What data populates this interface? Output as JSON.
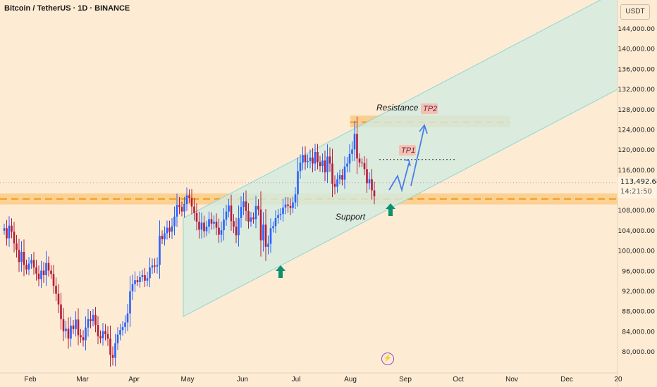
{
  "header": {
    "title": "Bitcoin / TetherUS · 1D · BINANCE"
  },
  "currency": "USDT",
  "price_axis": {
    "ticks": [
      {
        "v": 144000,
        "label": "144,000.00"
      },
      {
        "v": 140000,
        "label": "140,000.00"
      },
      {
        "v": 136000,
        "label": "136,000.00"
      },
      {
        "v": 132000,
        "label": "132,000.00"
      },
      {
        "v": 128000,
        "label": "128,000.00"
      },
      {
        "v": 124000,
        "label": "124,000.00"
      },
      {
        "v": 120000,
        "label": "120,000.00"
      },
      {
        "v": 116000,
        "label": "116,000.00"
      },
      {
        "v": 108000,
        "label": "108,000.00"
      },
      {
        "v": 104000,
        "label": "104,000.00"
      },
      {
        "v": 100000,
        "label": "100,000.00"
      },
      {
        "v": 96000,
        "label": "96,000.00"
      },
      {
        "v": 92000,
        "label": "92,000.00"
      },
      {
        "v": 88000,
        "label": "88,000.00"
      },
      {
        "v": 84000,
        "label": "84,000.00"
      },
      {
        "v": 80000,
        "label": "80,000.00"
      }
    ]
  },
  "current_price": {
    "value": "113,492.68",
    "countdown": "14:21:50"
  },
  "time_axis": {
    "labels": [
      "Feb",
      "Mar",
      "Apr",
      "May",
      "Jun",
      "Jul",
      "Aug",
      "Sep",
      "Oct",
      "Nov",
      "Dec",
      "20"
    ]
  },
  "annotations": {
    "resistance": "Resistance",
    "support": "Support",
    "tp1": "TP1",
    "tp2": "TP2"
  },
  "levels": {
    "resistance_low": 124500,
    "resistance_high": 126800,
    "resistance_line": 125500,
    "support_low": 109200,
    "support_high": 111400,
    "support_line": 110300,
    "tp1_line": 118100
  },
  "colors": {
    "up": "#2962ff",
    "down": "#b71c3c",
    "support_zone": "#f9c77e",
    "dashed_level": "#f29b1a",
    "channel_fill": "#d2ebe1",
    "channel_edge": "#8fd7d3",
    "arrow_up": "#0f8f6f",
    "projection": "#4a7ee8",
    "tp_label_bg": "#f3c1b3"
  },
  "chart_data": {
    "type": "candlestick",
    "title": "Bitcoin / TetherUS · 1D · BINANCE",
    "y_unit": "USDT",
    "ylim": [
      77000,
      148000
    ],
    "x_labels": [
      "Feb",
      "Mar",
      "Apr",
      "May",
      "Jun",
      "Jul",
      "Aug",
      "Sep",
      "Oct",
      "Nov",
      "Dec",
      "20"
    ],
    "closes": [
      104500,
      102500,
      105000,
      103800,
      101500,
      100200,
      97800,
      99800,
      97200,
      96300,
      97500,
      98200,
      96700,
      95500,
      94400,
      96100,
      95200,
      97600,
      96100,
      95400,
      93100,
      91500,
      89400,
      86500,
      84100,
      84600,
      82600,
      85200,
      84500,
      86400,
      83300,
      82900,
      82300,
      84800,
      86500,
      86100,
      87300,
      85300,
      83100,
      82700,
      84100,
      83500,
      82600,
      79400,
      78800,
      81700,
      83400,
      84300,
      84900,
      85800,
      87600,
      92000,
      93400,
      94200,
      93800,
      94800,
      95200,
      94100,
      94600,
      96700,
      97100,
      96900,
      97200,
      103000,
      102300,
      103500,
      104600,
      103800,
      104900,
      106800,
      109100,
      108700,
      107800,
      109300,
      111000,
      110500,
      108800,
      107500,
      105800,
      104200,
      105600,
      103900,
      104800,
      106300,
      105400,
      105800,
      104600,
      103200,
      104100,
      106200,
      107800,
      109000,
      105900,
      104800,
      103100,
      106500,
      108700,
      109800,
      107900,
      105800,
      106600,
      106300,
      108900,
      108200,
      102100,
      105200,
      100800,
      101400,
      104500,
      104900,
      106500,
      107100,
      107300,
      108600,
      109200,
      108900,
      108500,
      109600,
      111200,
      115800,
      117500,
      119000,
      117600,
      117800,
      118500,
      117300,
      119600,
      117600,
      116800,
      117900,
      115600,
      118700,
      117300,
      113300,
      112700,
      114200,
      115000,
      114100,
      116700,
      117300,
      119200,
      120100,
      123200,
      118300,
      117500,
      117400,
      116200,
      113400,
      114200,
      112000,
      110800
    ],
    "channel": {
      "lower_start": [
        "May",
        87000
      ],
      "lower_end": [
        "Dec",
        132000
      ],
      "width": 19500
    },
    "levels": {
      "resistance_zone": [
        124500,
        126800
      ],
      "support_zone": [
        109200,
        111400
      ],
      "tp1": 118100,
      "current": 113492.68
    },
    "annotations": [
      "Resistance",
      "Support",
      "TP1",
      "TP2"
    ]
  }
}
